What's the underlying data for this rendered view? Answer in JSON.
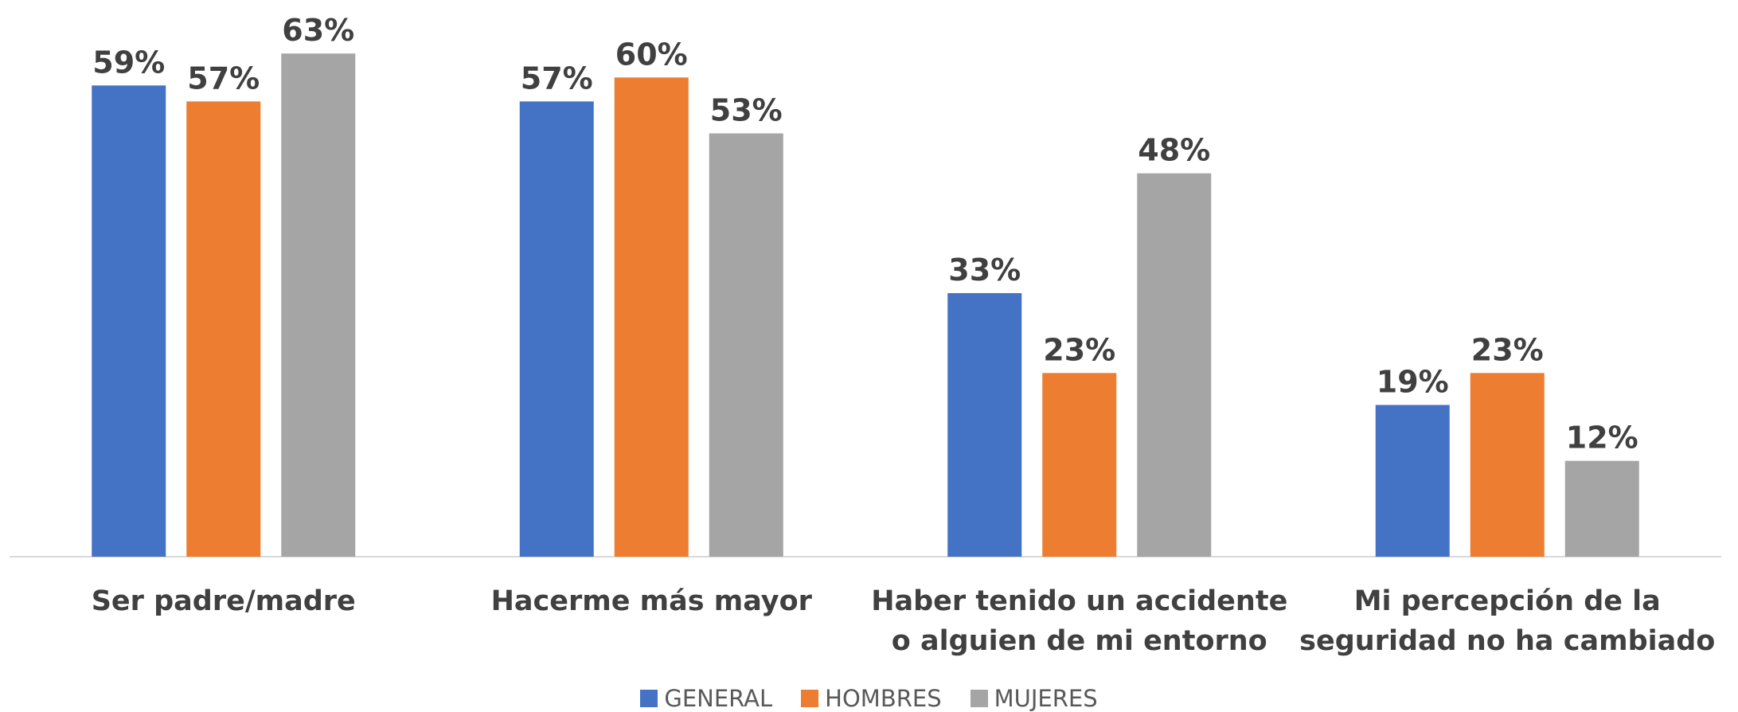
{
  "chart_data": {
    "type": "bar",
    "categories": [
      "Ser padre/madre",
      "Hacerme más mayor",
      "Haber tenido un accidente o alguien de mi entorno",
      "Mi percepción de la seguridad no ha cambiado"
    ],
    "series": [
      {
        "name": "GENERAL",
        "color": "#4472c4",
        "values": [
          59,
          57,
          33,
          19
        ],
        "value_labels": [
          "59%",
          "57%",
          "33%",
          "19%"
        ]
      },
      {
        "name": "HOMBRES",
        "color": "#ed7d31",
        "values": [
          57,
          60,
          23,
          23
        ],
        "value_labels": [
          "57%",
          "60%",
          "23%",
          "23%"
        ]
      },
      {
        "name": "MUJERES",
        "color": "#a5a5a5",
        "values": [
          63,
          53,
          48,
          12
        ],
        "value_labels": [
          "63%",
          "53%",
          "48%",
          "12%"
        ]
      }
    ],
    "ylim": [
      0,
      70
    ]
  }
}
